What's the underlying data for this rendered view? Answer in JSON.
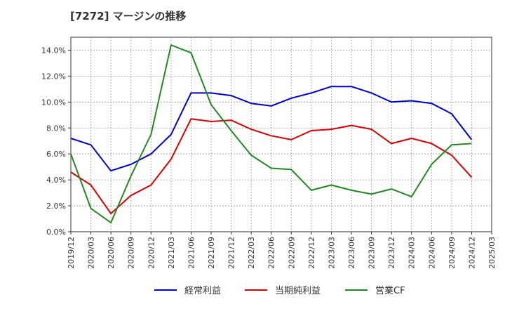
{
  "chart_data": {
    "type": "line",
    "title": "[7272]  マージンの推移",
    "xlabel": "",
    "ylabel": "",
    "ylim": [
      0,
      15
    ],
    "y_ticks": [
      "0.0%",
      "2.0%",
      "4.0%",
      "6.0%",
      "8.0%",
      "10.0%",
      "12.0%",
      "14.0%"
    ],
    "categories": [
      "2019/12",
      "2020/03",
      "2020/06",
      "2020/09",
      "2020/12",
      "2021/03",
      "2021/06",
      "2021/09",
      "2021/12",
      "2022/03",
      "2022/06",
      "2022/09",
      "2022/12",
      "2023/03",
      "2023/06",
      "2023/09",
      "2023/12",
      "2024/03",
      "2024/06",
      "2024/09",
      "2024/12",
      "2025/03"
    ],
    "grid": true,
    "legend_position": "bottom",
    "series": [
      {
        "name": "経常利益",
        "color": "#0000cc",
        "values": [
          7.2,
          6.7,
          4.7,
          5.2,
          6.0,
          7.5,
          10.7,
          10.7,
          10.5,
          9.9,
          9.7,
          10.3,
          10.7,
          11.2,
          11.2,
          10.7,
          10.0,
          10.1,
          9.9,
          9.1,
          7.1,
          null
        ]
      },
      {
        "name": "当期純利益",
        "color": "#dd0000",
        "values": [
          4.6,
          3.6,
          1.4,
          2.8,
          3.6,
          5.6,
          8.7,
          8.5,
          8.6,
          7.9,
          7.4,
          7.1,
          7.8,
          7.9,
          8.2,
          7.9,
          6.8,
          7.2,
          6.8,
          5.9,
          4.2,
          null
        ]
      },
      {
        "name": "営業CF",
        "color": "#228822",
        "values": [
          6.0,
          1.8,
          0.7,
          4.3,
          7.5,
          14.4,
          13.8,
          9.8,
          7.8,
          5.9,
          4.9,
          4.8,
          3.2,
          3.6,
          3.2,
          2.9,
          3.3,
          2.7,
          5.2,
          6.7,
          6.8,
          null
        ]
      }
    ]
  }
}
